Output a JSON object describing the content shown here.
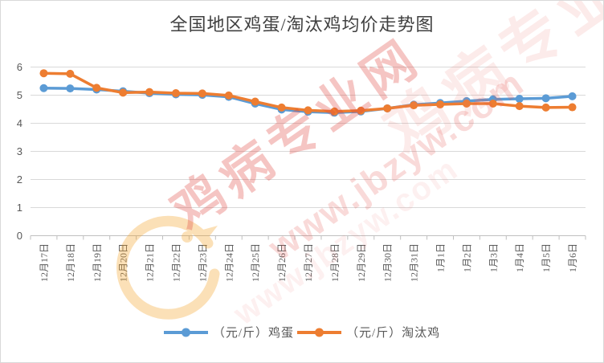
{
  "watermark": {
    "brand": "鸡病专业网",
    "url": "www.jbzyw.com"
  },
  "colors": {
    "egg_series": "#5B9BD5",
    "culled_series": "#ED7D31",
    "gridline": "#D9D9D9",
    "axis": "#BFBFBF",
    "tick_label": "#595959",
    "title_text": "#404040",
    "watermark_red": "#DE3E38"
  },
  "chart_data": {
    "type": "line",
    "title": "全国地区鸡蛋/淘汰鸡均价走势图",
    "categories": [
      "12月17日",
      "12月18日",
      "12月19日",
      "12月20日",
      "12月21日",
      "12月22日",
      "12月23日",
      "12月24日",
      "12月25日",
      "12月26日",
      "12月27日",
      "12月28日",
      "12月29日",
      "12月30日",
      "12月31日",
      "1月1日",
      "1月2日",
      "1月3日",
      "1月4日",
      "1月5日",
      "1月6日"
    ],
    "series": [
      {
        "name": "（元/斤）鸡蛋",
        "color": "#5B9BD5",
        "values": [
          5.25,
          5.24,
          5.2,
          5.14,
          5.07,
          5.03,
          5.01,
          4.94,
          4.7,
          4.49,
          4.41,
          4.38,
          4.42,
          4.53,
          4.66,
          4.72,
          4.79,
          4.85,
          4.87,
          4.89,
          4.96
        ]
      },
      {
        "name": "（元/斤）淘汰鸡",
        "color": "#ED7D31",
        "values": [
          5.78,
          5.76,
          5.26,
          5.09,
          5.11,
          5.07,
          5.06,
          4.99,
          4.77,
          4.56,
          4.46,
          4.42,
          4.45,
          4.53,
          4.64,
          4.67,
          4.7,
          4.7,
          4.61,
          4.56,
          4.57
        ]
      }
    ],
    "xlabel": "",
    "ylabel": "",
    "ylim": [
      0,
      6
    ],
    "yticks": [
      0,
      1,
      2,
      3,
      4,
      5,
      6
    ],
    "grid": true,
    "legend_position": "bottom",
    "marker": "circle"
  }
}
